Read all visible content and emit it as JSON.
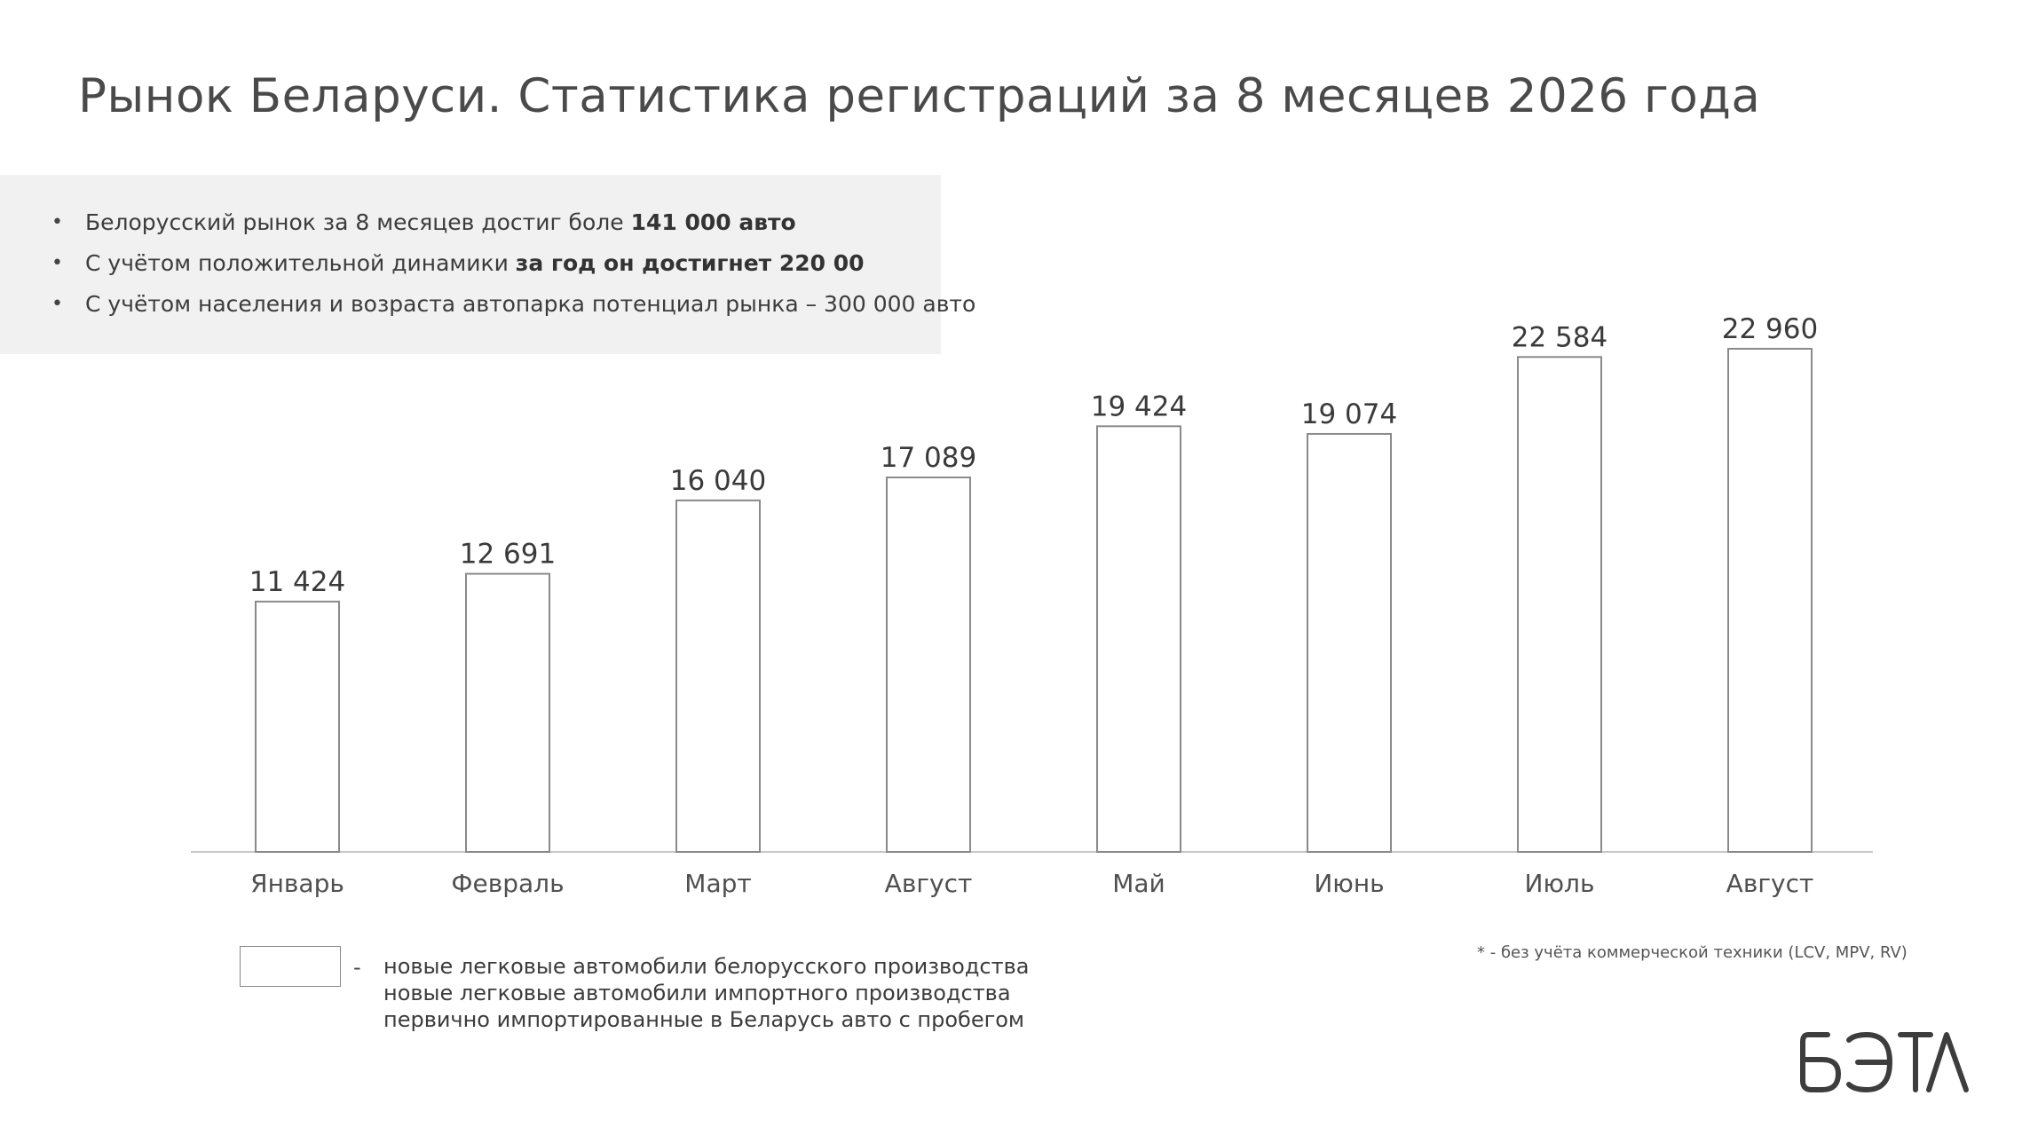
{
  "title": "Рынок Беларуси. Статистика регистраций за 8 месяцев 2026 года",
  "info_bullets": [
    {
      "bullet": "•",
      "text": "Белорусский рынок за 8 месяцев достиг боле ",
      "bold": "141 000 авто"
    },
    {
      "bullet": "•",
      "text": "С учётом положительной динамики ",
      "bold": "за год он достигнет 220 00"
    },
    {
      "bullet": "•",
      "text": "С учётом населения и возраста автопарка потенциал рынка – 300 000 авто",
      "bold": ""
    }
  ],
  "chart_data": {
    "type": "bar",
    "title": "",
    "xlabel": "",
    "ylabel": "",
    "categories": [
      "Январь",
      "Февраль",
      "Март",
      "Август",
      "Май",
      "Июнь",
      "Июль",
      "Август"
    ],
    "values": [
      11424,
      12691,
      16040,
      17089,
      19424,
      19074,
      22584,
      22960
    ],
    "value_labels": [
      "11 424",
      "12 691",
      "16 040",
      "17 089",
      "19 424",
      "19 074",
      "22 584",
      "22 960"
    ],
    "ylim": [
      0,
      22960
    ],
    "grid": false,
    "bar_fill": "#ffffff",
    "bar_stroke": "#8a8a8a",
    "axis_color": "#c8c8c8"
  },
  "legend": {
    "dash": "-",
    "lines": [
      "новые легковые автомобили белорусского производства",
      "новые легковые автомобили импортного производства",
      "первично импортированные в Беларусь авто с пробегом"
    ]
  },
  "footnote": "* - без учёта коммерческой техники (LCV, MPV, RV)",
  "logo_text": "БЭТА"
}
